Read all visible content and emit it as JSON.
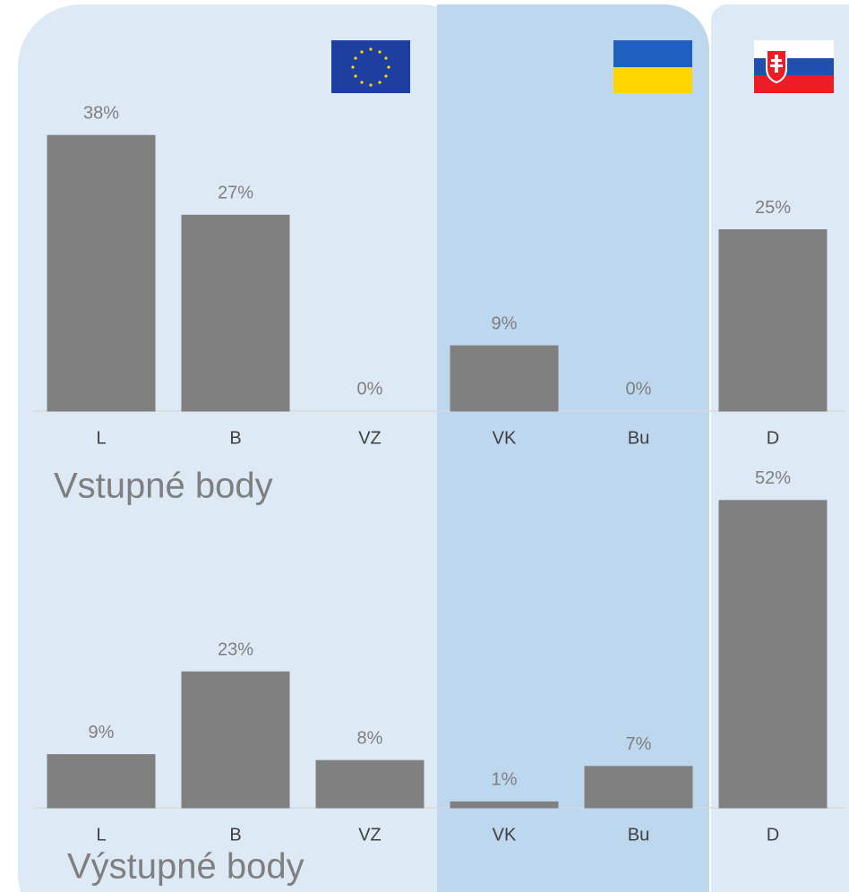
{
  "chart_data": [
    {
      "type": "bar",
      "title": "Vstupné body",
      "categories": [
        "L",
        "B",
        "VZ",
        "VK",
        "Bu",
        "D"
      ],
      "values": [
        38,
        27,
        0,
        9,
        0,
        25
      ],
      "value_labels": [
        "38%",
        "27%",
        "0%",
        "9%",
        "0%",
        "25%"
      ],
      "color": "#808080"
    },
    {
      "type": "bar",
      "title": "Výstupné body",
      "categories": [
        "L",
        "B",
        "VZ",
        "VK",
        "Bu",
        "D"
      ],
      "values": [
        9,
        23,
        8,
        1,
        7,
        52
      ],
      "value_labels": [
        "9%",
        "23%",
        "8%",
        "1%",
        "7%",
        "52%"
      ],
      "color": "#808080"
    }
  ]
}
